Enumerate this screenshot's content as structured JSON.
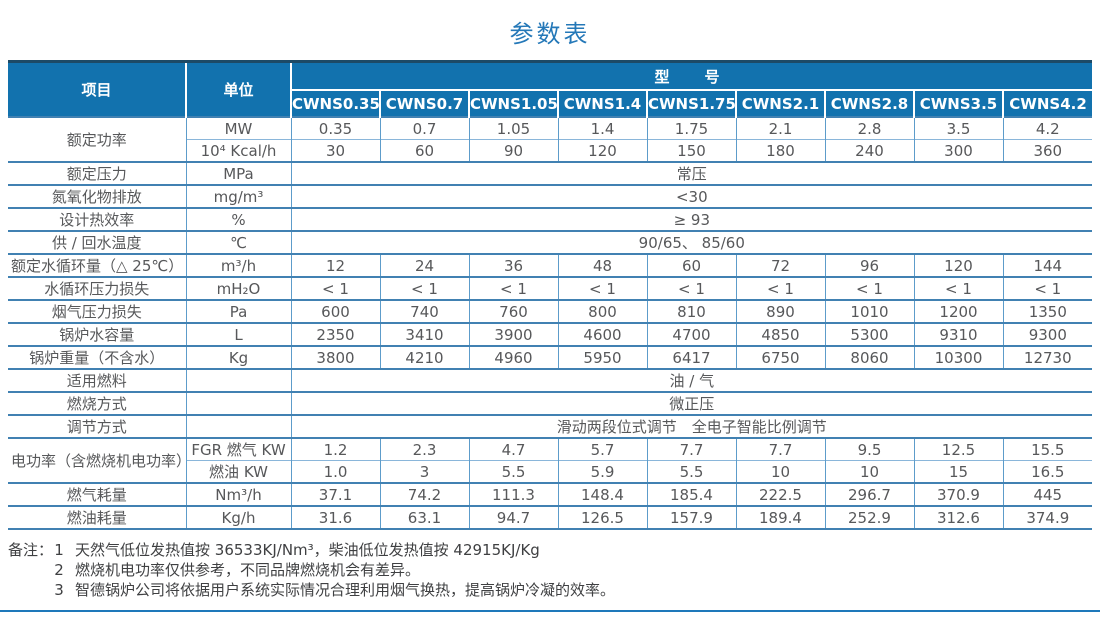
{
  "title": "参数表",
  "table": {
    "header": {
      "item": "项目",
      "unit": "单位",
      "model_group": "型　号",
      "models": [
        "CWNS0.35",
        "CWNS0.7",
        "CWNS1.05",
        "CWNS1.4",
        "CWNS1.75",
        "CWNS2.1",
        "CWNS2.8",
        "CWNS3.5",
        "CWNS4.2"
      ]
    },
    "body": [
      {
        "label": "额定功率",
        "rowspan": 2,
        "unit": "MW",
        "values": [
          "0.35",
          "0.7",
          "1.05",
          "1.4",
          "1.75",
          "2.1",
          "2.8",
          "3.5",
          "4.2"
        ]
      },
      {
        "unit": "10⁴ Kcal/h",
        "values": [
          "30",
          "60",
          "90",
          "120",
          "150",
          "180",
          "240",
          "300",
          "360"
        ]
      },
      {
        "label": "额定压力",
        "unit": "MPa",
        "span": "常压"
      },
      {
        "label": "氮氧化物排放",
        "unit": "mg/m³",
        "span": "<30"
      },
      {
        "label": "设计热效率",
        "unit": "%",
        "span": "≥ 93"
      },
      {
        "label": "供 / 回水温度",
        "unit": "℃",
        "span": "90/65、 85/60"
      },
      {
        "label": "额定水循环量（△ 25℃）",
        "unit": "m³/h",
        "values": [
          "12",
          "24",
          "36",
          "48",
          "60",
          "72",
          "96",
          "120",
          "144"
        ]
      },
      {
        "label": "水循环压力损失",
        "unit": "mH₂O",
        "values": [
          "< 1",
          "< 1",
          "< 1",
          "< 1",
          "< 1",
          "< 1",
          "< 1",
          "< 1",
          "< 1"
        ]
      },
      {
        "label": "烟气压力损失",
        "unit": "Pa",
        "values": [
          "600",
          "740",
          "760",
          "800",
          "810",
          "890",
          "1010",
          "1200",
          "1350"
        ]
      },
      {
        "label": "锅炉水容量",
        "unit": "L",
        "values": [
          "2350",
          "3410",
          "3900",
          "4600",
          "4700",
          "4850",
          "5300",
          "9310",
          "9300"
        ]
      },
      {
        "label": "锅炉重量（不含水）",
        "unit": "Kg",
        "values": [
          "3800",
          "4210",
          "4960",
          "5950",
          "6417",
          "6750",
          "8060",
          "10300",
          "12730"
        ]
      },
      {
        "label": "适用燃料",
        "unit": "",
        "span": "油 / 气"
      },
      {
        "label": "燃烧方式",
        "unit": "",
        "span": "微正压"
      },
      {
        "label": "调节方式",
        "unit": "",
        "span": "滑动两段位式调节　全电子智能比例调节"
      },
      {
        "label": "电功率（含燃烧机电功率）",
        "rowspan": 2,
        "unit": "FGR 燃气 KW",
        "values": [
          "1.2",
          "2.3",
          "4.7",
          "5.7",
          "7.7",
          "7.7",
          "9.5",
          "12.5",
          "15.5"
        ]
      },
      {
        "unit": "燃油 KW",
        "values": [
          "1.0",
          "3",
          "5.5",
          "5.9",
          "5.5",
          "10",
          "10",
          "15",
          "16.5"
        ]
      },
      {
        "label": "燃气耗量",
        "unit": "Nm³/h",
        "values": [
          "37.1",
          "74.2",
          "111.3",
          "148.4",
          "185.4",
          "222.5",
          "296.7",
          "370.9",
          "445"
        ]
      },
      {
        "label": "燃油耗量",
        "unit": "Kg/h",
        "values": [
          "31.6",
          "63.1",
          "94.7",
          "126.5",
          "157.9",
          "189.4",
          "252.9",
          "312.6",
          "374.9"
        ]
      }
    ]
  },
  "notes": {
    "prefix": "备注：",
    "items": [
      {
        "num": "1",
        "text": "天然气低位发热值按 36533KJ/Nm³，柴油低位发热值按 42915KJ/Kg"
      },
      {
        "num": "2",
        "text": "燃烧机电功率仅供参考，不同品牌燃烧机会有差异。"
      },
      {
        "num": "3",
        "text": "智德锅炉公司将依据用户系统实际情况合理利用烟气换热，提高锅炉冷凝的效率。"
      }
    ]
  },
  "colors": {
    "header_bg": "#1272ae",
    "title_blue": "#2478b8",
    "grid_blue": "#4181b2",
    "rule_blue": "#1e78ba"
  }
}
